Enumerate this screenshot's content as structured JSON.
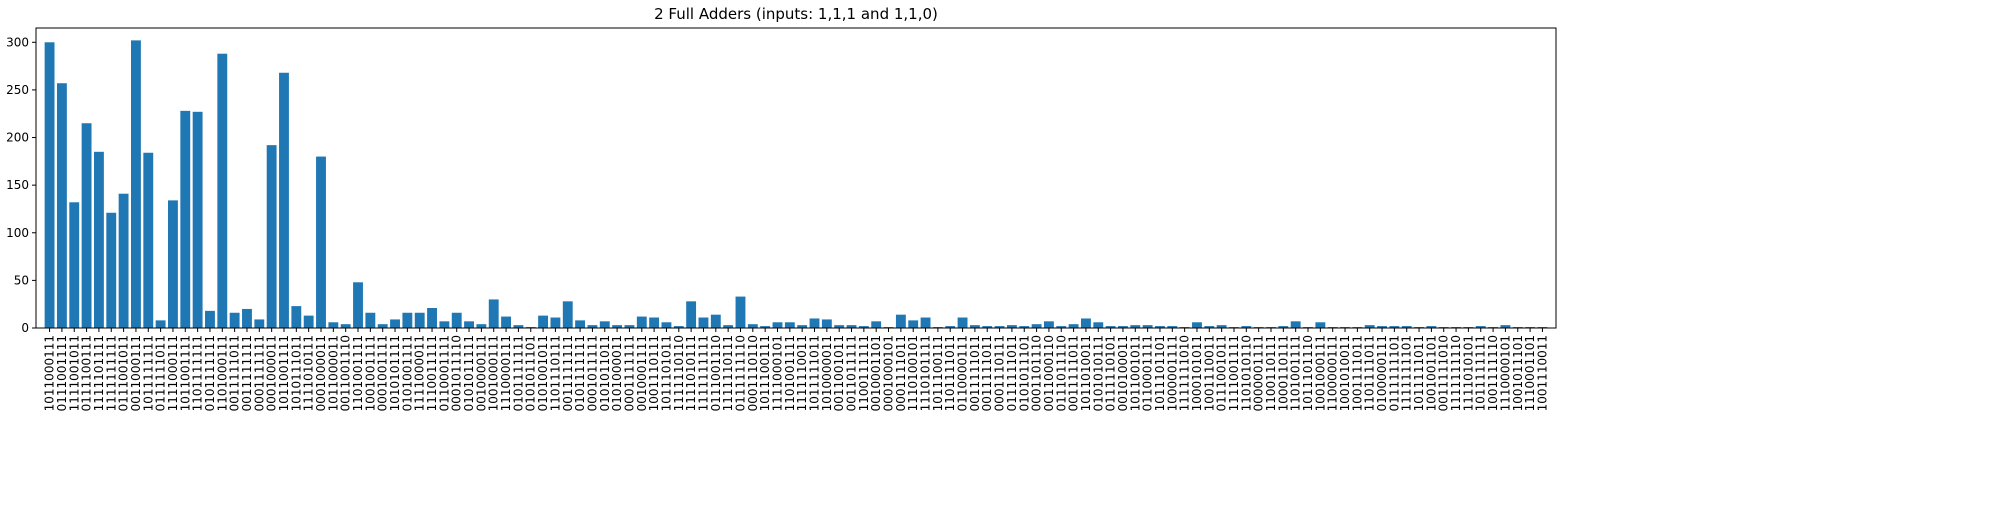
{
  "chart_data": {
    "type": "bar",
    "title": "2 Full Adders (inputs: 1,1,1 and 1,1,0)",
    "xlabel": "",
    "ylabel": "",
    "ylim": [
      0,
      315
    ],
    "yticks": [
      0,
      50,
      100,
      150,
      200,
      250,
      300
    ],
    "bar_color": "#1f77b4",
    "grid": false,
    "categories": [
      "1011000111",
      "0111001111",
      "1111001011",
      "0111100111",
      "1111101111",
      "1111111111",
      "0111001011",
      "0011000111",
      "1011111111",
      "0111111011",
      "1111000111",
      "1011001111",
      "1101111111",
      "0101111111",
      "1101000111",
      "0011111011",
      "0011111111",
      "0001111111",
      "0001000011",
      "1011001111",
      "1010111011",
      "1111010111",
      "0001000011",
      "1011000011",
      "0011001110",
      "1101001111",
      "1001001111",
      "0001001111",
      "1010101111",
      "0101001111",
      "1111000011",
      "1110011111",
      "0110001111",
      "0001011110",
      "0101011111",
      "0010000111",
      "1001000111",
      "1110000111",
      "0101111111",
      "0101011101",
      "0101001011",
      "1101110111",
      "0011111111",
      "0101111111",
      "0001011111",
      "0101011011",
      "0101000011",
      "0001111111",
      "0010001111",
      "1001110111",
      "1011101011",
      "1111110110",
      "1111010111",
      "1111111111",
      "0111001110",
      "1111110111",
      "0111111110",
      "0001110110",
      "1011100111",
      "1111000101",
      "1101001111",
      "1111110011",
      "1011111011",
      "1010000011",
      "0011001011",
      "0011011111",
      "1100111111",
      "0010001101",
      "0001000101",
      "0001111011",
      "1110100101",
      "1110101111",
      "1011100111",
      "1101111011",
      "0110000111",
      "0011111011",
      "0011111011",
      "0001110111",
      "0111111011",
      "0101011101",
      "0001101110",
      "0011000110",
      "0111011110",
      "0011111011",
      "1011010011",
      "0101010111",
      "0111110101",
      "0010100011",
      "1011001011",
      "0110001111",
      "1011101101",
      "1000001111",
      "1111111010",
      "1000101011",
      "1001110011",
      "0111001011",
      "1111001111",
      "1101010110",
      "0000001111",
      "1100110111",
      "1000110111",
      "1101001111",
      "1011101110",
      "1001000111",
      "1100000111",
      "1001010011",
      "1001111011",
      "1101111011",
      "0100000111",
      "0111111101",
      "1111111101",
      "1011111011",
      "1001001101",
      "0011111010",
      "1111111110",
      "1111010101",
      "1011111111",
      "1001111110",
      "1110000101",
      "1001011101",
      "1110001101",
      "1001110011"
    ],
    "values": [
      300,
      257,
      132,
      215,
      185,
      121,
      141,
      302,
      184,
      8,
      134,
      228,
      227,
      18,
      288,
      16,
      20,
      9,
      192,
      268,
      23,
      13,
      180,
      6,
      4,
      48,
      16,
      4,
      9,
      16,
      16,
      21,
      7,
      16,
      7,
      4,
      30,
      12,
      3,
      1,
      13,
      11,
      28,
      8,
      3,
      7,
      3,
      3,
      12,
      11,
      6,
      2,
      28,
      11,
      14,
      3,
      33,
      4,
      2,
      6,
      6,
      3,
      10,
      9,
      3,
      3,
      2,
      7,
      1,
      14,
      8,
      11,
      1,
      2,
      11,
      3,
      2,
      2,
      3,
      2,
      4,
      7,
      2,
      4,
      10,
      6,
      2,
      2,
      3,
      3,
      2,
      2,
      1,
      6,
      2,
      3,
      1,
      2,
      1,
      1,
      2,
      7,
      1,
      6,
      1,
      1,
      1,
      3,
      2,
      2,
      2,
      1,
      2,
      1,
      1,
      1,
      2,
      1,
      3,
      1,
      1,
      1
    ]
  }
}
